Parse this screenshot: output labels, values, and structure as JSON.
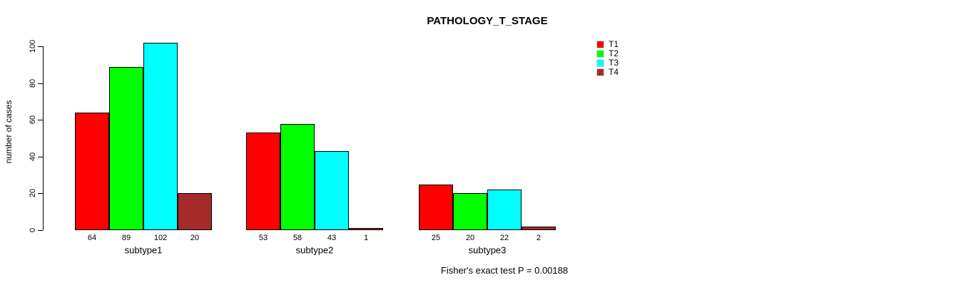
{
  "chart_data": {
    "type": "bar",
    "title": "PATHOLOGY_T_STAGE",
    "xlabel": "",
    "ylabel": "number of cases",
    "ylim": [
      0,
      100
    ],
    "yticks": [
      0,
      20,
      40,
      60,
      80,
      100
    ],
    "categories": [
      "subtype1",
      "subtype2",
      "subtype3"
    ],
    "series": [
      {
        "name": "T1",
        "color": "#ff0000",
        "values": [
          64,
          53,
          25
        ]
      },
      {
        "name": "T2",
        "color": "#00ff00",
        "values": [
          89,
          58,
          20
        ]
      },
      {
        "name": "T3",
        "color": "#00ffff",
        "values": [
          102,
          43,
          22
        ]
      },
      {
        "name": "T4",
        "color": "#a52a2a",
        "values": [
          20,
          1,
          2
        ]
      }
    ],
    "bar_value_labels": [
      [
        64,
        89,
        102,
        20
      ],
      [
        53,
        58,
        43,
        1
      ],
      [
        25,
        20,
        22,
        2
      ]
    ],
    "grid": false,
    "legend_position": "right",
    "annotation": "Fisher's exact test P = 0.00188"
  },
  "colors": {
    "background": "#ffffff",
    "axis": "#000000",
    "bar_border": "#000000",
    "text": "#000000"
  }
}
